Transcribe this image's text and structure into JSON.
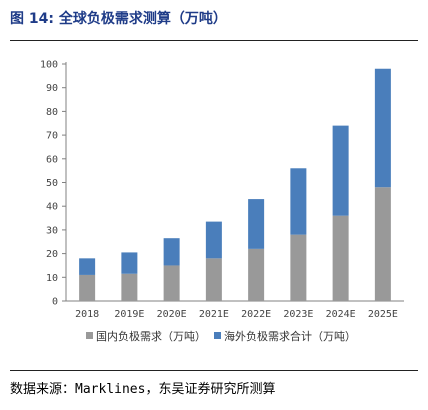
{
  "title": "图 14: 全球负极需求测算（万吨）",
  "source": "数据来源：Marklines，东吴证券研究所测算",
  "chart_data": {
    "type": "bar",
    "stacked": true,
    "title": "",
    "xlabel": "",
    "ylabel": "",
    "categories": [
      "2018",
      "2019E",
      "2020E",
      "2021E",
      "2022E",
      "2023E",
      "2024E",
      "2025E"
    ],
    "yticks": [
      "0",
      "10",
      "20",
      "30",
      "40",
      "50",
      "60",
      "70",
      "80",
      "90",
      "100"
    ],
    "ylim": [
      0,
      100
    ],
    "grid": false,
    "legend_position": "bottom",
    "series": [
      {
        "name": "国内负极需求（万吨）",
        "color": "#999999",
        "values": [
          11,
          11.5,
          15,
          18,
          22,
          28,
          36,
          48
        ]
      },
      {
        "name": "海外负极需求合计（万吨）",
        "color": "#4a7ebb",
        "values": [
          7,
          9,
          11.5,
          15.5,
          21,
          28,
          38,
          50
        ]
      }
    ]
  }
}
